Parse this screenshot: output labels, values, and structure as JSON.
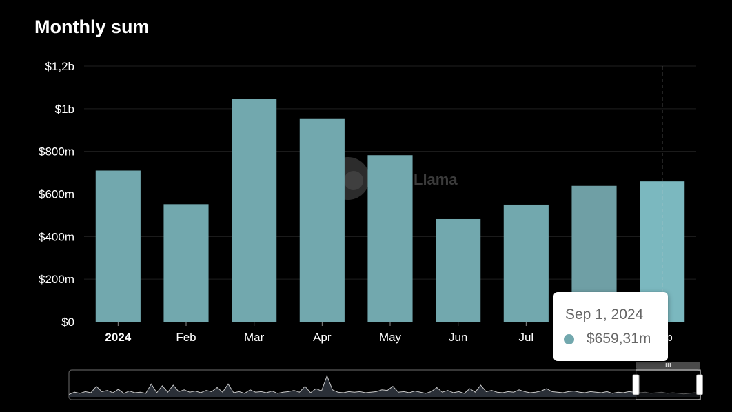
{
  "chart_data": {
    "type": "bar",
    "title": "Monthly sum",
    "categories": [
      "2024",
      "Feb",
      "Mar",
      "Apr",
      "May",
      "Jun",
      "Jul",
      "Aug",
      "Sep"
    ],
    "values": [
      710,
      552,
      1045,
      955,
      782,
      482,
      550,
      638,
      659.31
    ],
    "value_unit": "$m",
    "ylim": [
      0,
      1200
    ],
    "yticks": [
      0,
      200,
      400,
      600,
      800,
      1000,
      1200
    ],
    "ytick_labels": [
      "$0",
      "$200m",
      "$400m",
      "$600m",
      "$800m",
      "$1b",
      "$1,2b"
    ],
    "bold_tick_label": "2024",
    "grid": true,
    "highlighted_index": 8,
    "tooltip": {
      "date": "Sep 1, 2024",
      "value": "$659,31m"
    },
    "brush": {
      "start_fraction": 0.898,
      "end_fraction": 1.0
    }
  },
  "watermark_text": "Llama",
  "colors": {
    "bar": "#72a8ae",
    "bar_highlight": "#7bb8bf",
    "bar_dim": "#6f9fa5",
    "background": "#000000",
    "grid": "#1f1f1f",
    "tooltip_dot": "#72a8ae",
    "slider_line": "#c8c8c8"
  }
}
